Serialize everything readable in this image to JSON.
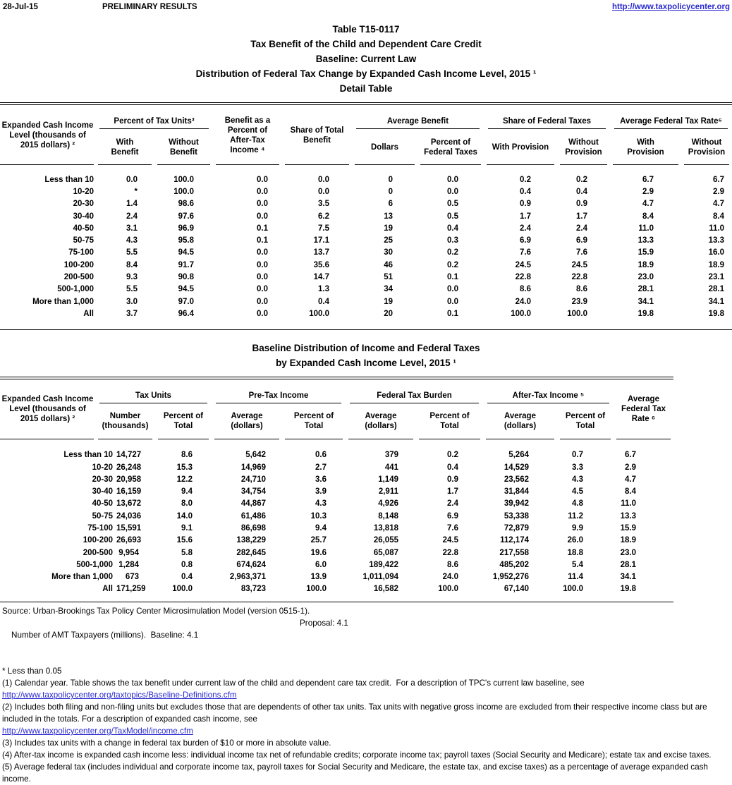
{
  "page": {
    "date": "28-Jul-15",
    "preliminary": "PRELIMINARY RESULTS",
    "site_link": "http://www.taxpolicycenter.org",
    "link_color": "#2a2ad0",
    "titles": {
      "line1": "Table T15-0117",
      "line2": "Tax Benefit of the Child and Dependent Care Credit",
      "line3": "Baseline: Current Law",
      "line4": "Distribution of Federal Tax Change by Expanded Cash Income Level, 2015 ¹",
      "line5": "Detail Table"
    }
  },
  "t1": {
    "col_label": "Expanded Cash Income Level (thousands of 2015 dollars) ²",
    "grp_pct_units": "Percent of Tax Units³",
    "with_benefit": "With Benefit",
    "without_benefit": "Without Benefit",
    "benefit_pct_ati": "Benefit as a Percent of After-Tax Income ⁴",
    "share_total_benefit": "Share of Total Benefit",
    "grp_avg_benefit": "Average Benefit",
    "dollars": "Dollars",
    "pct_fed_taxes": "Percent of Federal Taxes",
    "grp_share_fed": "Share of Federal Taxes",
    "with_prov": "With Provision",
    "without_prov": "Without Provision",
    "grp_avg_rate": "Average Federal Tax Rate⁶",
    "rows": [
      [
        "Less than 10",
        "0.0",
        "100.0",
        "0.0",
        "0.0",
        "0",
        "0.0",
        "0.2",
        "0.2",
        "6.7",
        "6.7"
      ],
      [
        "10-20",
        "*",
        "100.0",
        "0.0",
        "0.0",
        "0",
        "0.0",
        "0.4",
        "0.4",
        "2.9",
        "2.9"
      ],
      [
        "20-30",
        "1.4",
        "98.6",
        "0.0",
        "3.5",
        "6",
        "0.5",
        "0.9",
        "0.9",
        "4.7",
        "4.7"
      ],
      [
        "30-40",
        "2.4",
        "97.6",
        "0.0",
        "6.2",
        "13",
        "0.5",
        "1.7",
        "1.7",
        "8.4",
        "8.4"
      ],
      [
        "40-50",
        "3.1",
        "96.9",
        "0.1",
        "7.5",
        "19",
        "0.4",
        "2.4",
        "2.4",
        "11.0",
        "11.0"
      ],
      [
        "50-75",
        "4.3",
        "95.8",
        "0.1",
        "17.1",
        "25",
        "0.3",
        "6.9",
        "6.9",
        "13.3",
        "13.3"
      ],
      [
        "75-100",
        "5.5",
        "94.5",
        "0.0",
        "13.7",
        "30",
        "0.2",
        "7.6",
        "7.6",
        "15.9",
        "16.0"
      ],
      [
        "100-200",
        "8.4",
        "91.7",
        "0.0",
        "35.6",
        "46",
        "0.2",
        "24.5",
        "24.5",
        "18.9",
        "18.9"
      ],
      [
        "200-500",
        "9.3",
        "90.8",
        "0.0",
        "14.7",
        "51",
        "0.1",
        "22.8",
        "22.8",
        "23.0",
        "23.1"
      ],
      [
        "500-1,000",
        "5.5",
        "94.5",
        "0.0",
        "1.3",
        "34",
        "0.0",
        "8.6",
        "8.6",
        "28.1",
        "28.1"
      ],
      [
        "More than 1,000",
        "3.0",
        "97.0",
        "0.0",
        "0.4",
        "19",
        "0.0",
        "24.0",
        "23.9",
        "34.1",
        "34.1"
      ],
      [
        "All",
        "3.7",
        "96.4",
        "0.0",
        "100.0",
        "20",
        "0.1",
        "100.0",
        "100.0",
        "19.8",
        "19.8"
      ]
    ]
  },
  "t2": {
    "title1": "Baseline Distribution of Income and Federal Taxes",
    "title2": "by Expanded Cash Income Level, 2015 ¹",
    "col_label": "Expanded Cash Income Level (thousands of 2015 dollars) ²",
    "grp_tax_units": "Tax Units",
    "number_thousands": "Number (thousands)",
    "pct_total": "Percent of Total",
    "grp_pretax": "Pre-Tax Income",
    "avg_dollars": "Average (dollars)",
    "grp_burden": "Federal Tax Burden",
    "grp_aftertax": "After-Tax Income ⁵",
    "avg_rate": "Average Federal Tax Rate ⁶",
    "rows": [
      [
        "Less than 10",
        "14,727",
        "8.6",
        "5,642",
        "0.6",
        "379",
        "0.2",
        "5,264",
        "0.7",
        "6.7"
      ],
      [
        "10-20",
        "26,248",
        "15.3",
        "14,969",
        "2.7",
        "441",
        "0.4",
        "14,529",
        "3.3",
        "2.9"
      ],
      [
        "20-30",
        "20,958",
        "12.2",
        "24,710",
        "3.6",
        "1,149",
        "0.9",
        "23,562",
        "4.3",
        "4.7"
      ],
      [
        "30-40",
        "16,159",
        "9.4",
        "34,754",
        "3.9",
        "2,911",
        "1.7",
        "31,844",
        "4.5",
        "8.4"
      ],
      [
        "40-50",
        "13,672",
        "8.0",
        "44,867",
        "4.3",
        "4,926",
        "2.4",
        "39,942",
        "4.8",
        "11.0"
      ],
      [
        "50-75",
        "24,036",
        "14.0",
        "61,486",
        "10.3",
        "8,148",
        "6.9",
        "53,338",
        "11.2",
        "13.3"
      ],
      [
        "75-100",
        "15,591",
        "9.1",
        "86,698",
        "9.4",
        "13,818",
        "7.6",
        "72,879",
        "9.9",
        "15.9"
      ],
      [
        "100-200",
        "26,693",
        "15.6",
        "138,229",
        "25.7",
        "26,055",
        "24.5",
        "112,174",
        "26.0",
        "18.9"
      ],
      [
        "200-500",
        "9,954",
        "5.8",
        "282,645",
        "19.6",
        "65,087",
        "22.8",
        "217,558",
        "18.8",
        "23.0"
      ],
      [
        "500-1,000",
        "1,284",
        "0.8",
        "674,624",
        "6.0",
        "189,422",
        "8.6",
        "485,202",
        "5.4",
        "28.1"
      ],
      [
        "More than 1,000",
        "673",
        "0.4",
        "2,963,371",
        "13.9",
        "1,011,094",
        "24.0",
        "1,952,276",
        "11.4",
        "34.1"
      ],
      [
        "All",
        "171,259",
        "100.0",
        "83,723",
        "100.0",
        "16,582",
        "100.0",
        "67,140",
        "100.0",
        "19.8"
      ]
    ]
  },
  "footnotes": {
    "source": "Source: Urban-Brookings Tax Policy Center Microsimulation Model (version 0515-1).",
    "amt_label": "Number of AMT Taxpayers (millions).  Baseline: 4.1",
    "amt_proposal": "Proposal: 4.1",
    "star": "* Less than 0.05",
    "fn1": "(1) Calendar year. Table shows the tax benefit under current law of the child and dependent care tax credit.  For a description of TPC's current law baseline, see",
    "link1": "http://www.taxpolicycenter.org/taxtopics/Baseline-Definitions.cfm",
    "fn2": "(2) Includes both filing and non-filing units but excludes those that are dependents of other tax units. Tax units with negative gross income are excluded from their respective income class but are included in the totals. For a description of expanded cash income, see",
    "link2": "http://www.taxpolicycenter.org/TaxModel/income.cfm",
    "fn3": "(3) Includes tax units with a change in federal tax burden of $10 or more in absolute value.",
    "fn4": "(4) After-tax income is expanded cash income less: individual income tax net of refundable credits; corporate income tax; payroll taxes (Social Security and Medicare); estate tax and excise taxes.",
    "fn5": "(5) Average federal tax (includes individual and corporate income tax, payroll taxes for Social Security and Medicare, the estate tax, and excise taxes) as a percentage of average expanded cash income."
  }
}
